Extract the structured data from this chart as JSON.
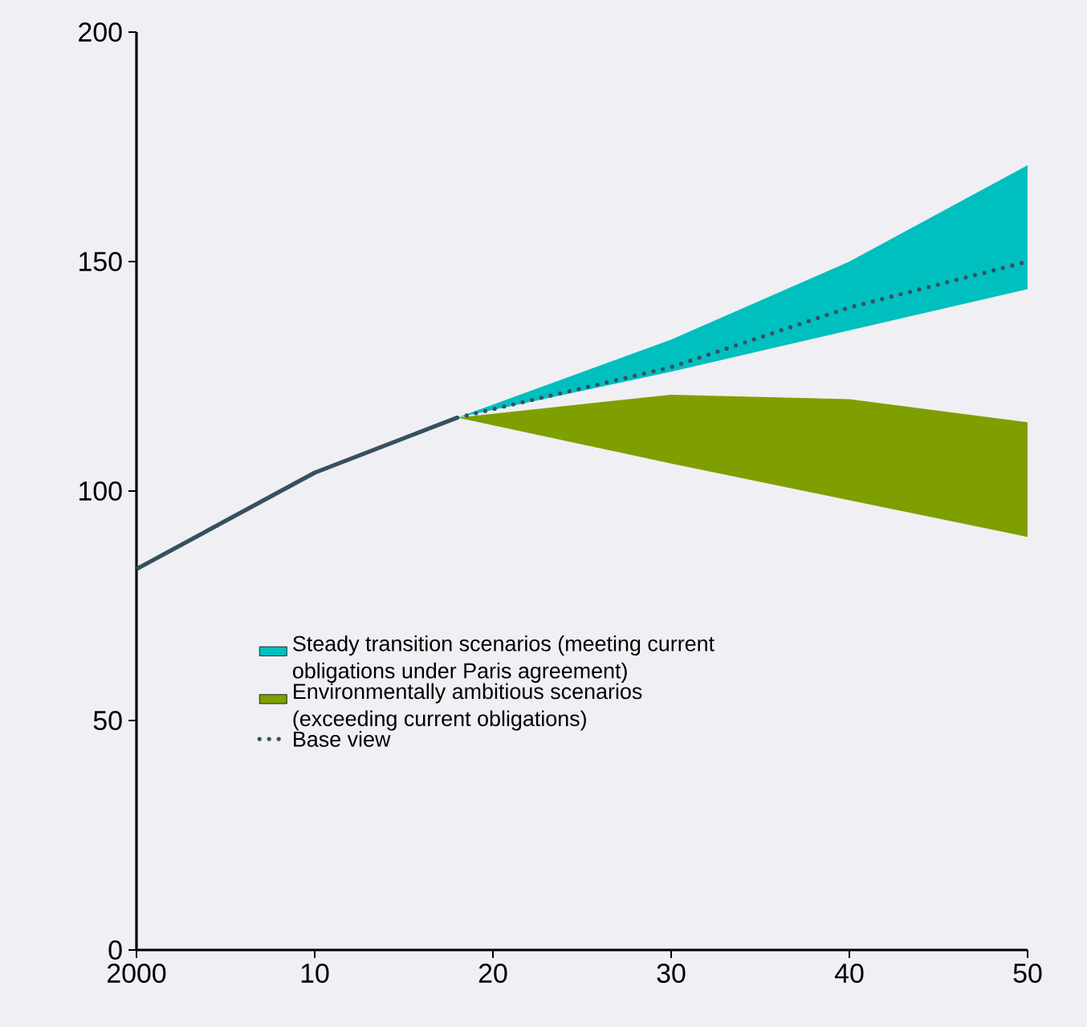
{
  "chart_data": {
    "type": "line",
    "xlim": [
      2000,
      2050
    ],
    "ylim": [
      0,
      200
    ],
    "xticks": [
      2000,
      {
        "value": 2010,
        "label": "10"
      },
      {
        "value": 2020,
        "label": "20"
      },
      {
        "value": 2030,
        "label": "30"
      },
      {
        "value": 2040,
        "label": "40"
      },
      {
        "value": 2050,
        "label": "50"
      }
    ],
    "yticks": [
      0,
      50,
      100,
      150,
      200
    ],
    "grid": false,
    "legend": "bottom",
    "marker": "none",
    "series": [
      {
        "color": "#37505f",
        "line_style": "solid",
        "x": [
          2000,
          2010,
          2018
        ],
        "values": [
          83,
          104,
          116
        ]
      },
      {
        "type": "area",
        "name": "Steady transition scenarios (meeting current obligations under Paris agreement)",
        "color": "#00bfbf",
        "x": [
          2018,
          2030,
          2040,
          2050
        ],
        "values": [
          null,
          null,
          null,
          null
        ],
        "lower": [
          116,
          126,
          135,
          144
        ],
        "upper": [
          116,
          133,
          150,
          171
        ]
      },
      {
        "type": "area",
        "name": "Environmentally ambitious scenarios (exceeding current obligations)",
        "color": "#7f9f00",
        "x": [
          2018,
          2030,
          2040,
          2050
        ],
        "values": [
          null,
          null,
          null,
          null
        ],
        "lower": [
          116,
          106,
          98,
          90
        ],
        "upper": [
          116,
          121,
          120,
          115
        ]
      },
      {
        "name": "Base view",
        "color": "#37505f",
        "line_style": "dotted",
        "x": [
          2018,
          2030,
          2040,
          2050
        ],
        "values": [
          116,
          127,
          140,
          150
        ]
      }
    ]
  }
}
